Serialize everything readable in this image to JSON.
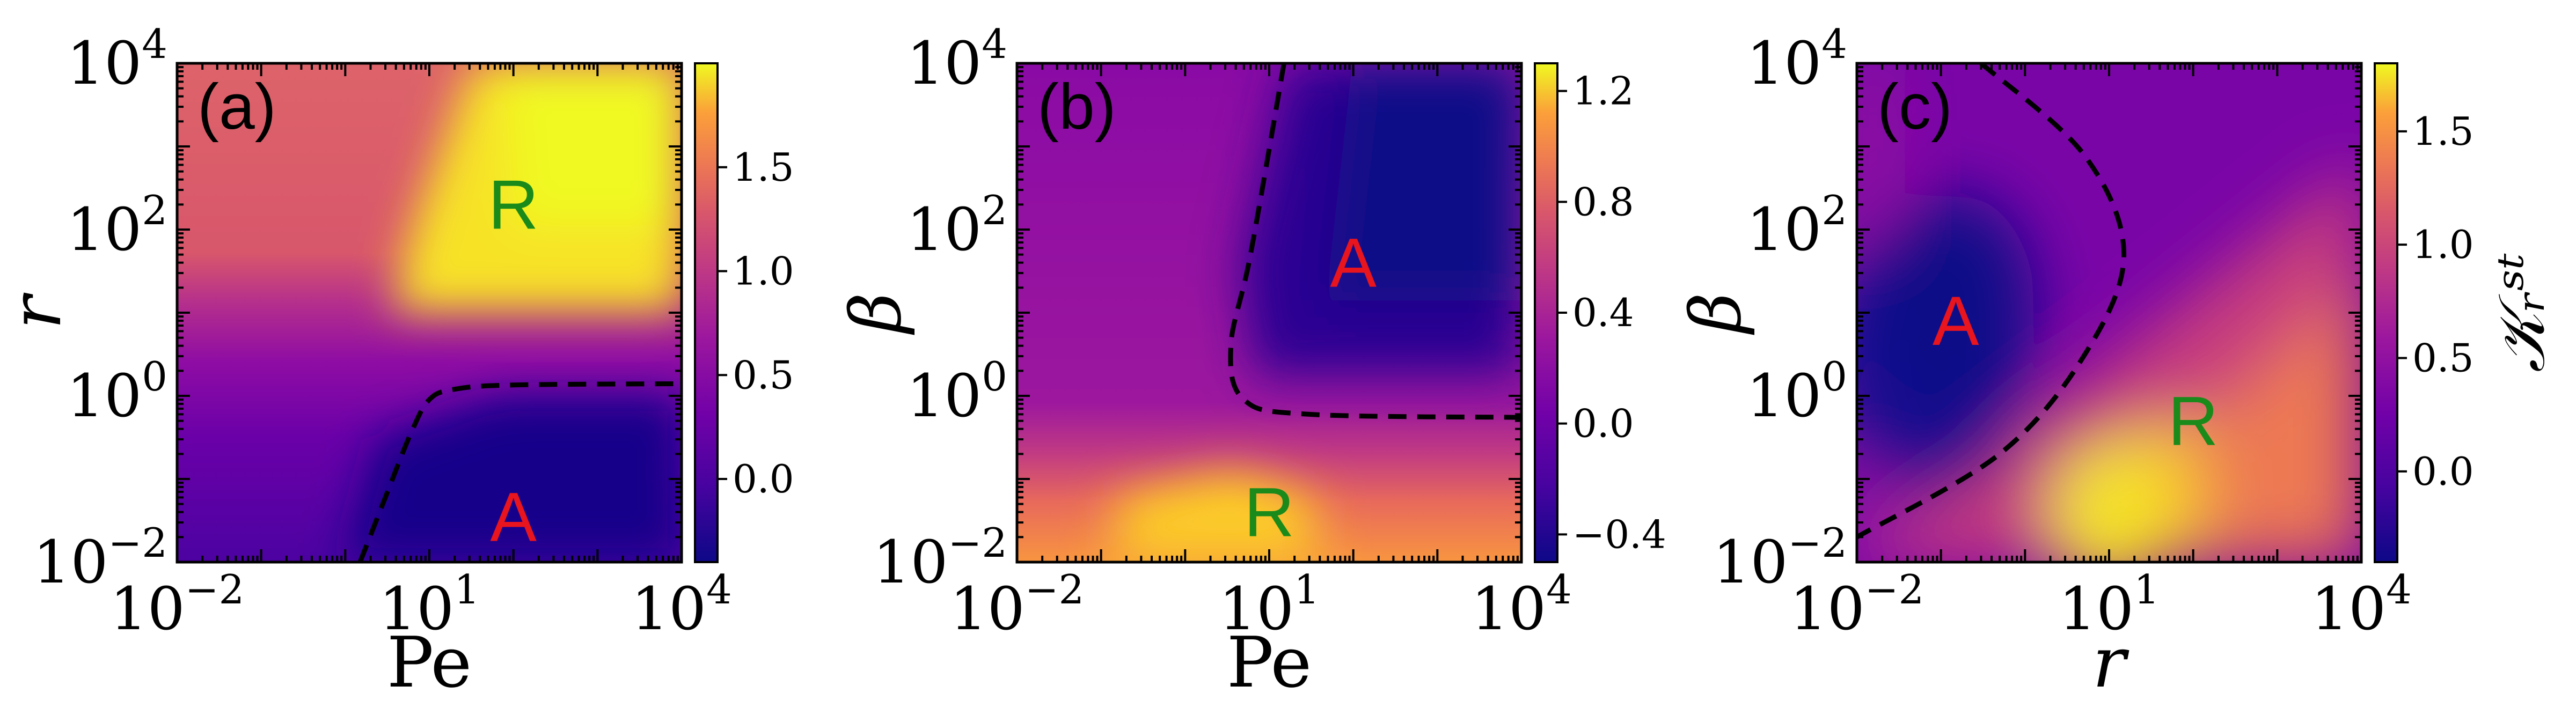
{
  "chart_data": [
    {
      "type": "heatmap",
      "panel_label": "(a)",
      "xlabel": "Pe",
      "ylabel": "r",
      "x_scale": "log",
      "y_scale": "log",
      "xlim": [
        0.01,
        10000
      ],
      "ylim": [
        0.01,
        10000
      ],
      "x_ticks": [
        {
          "base": "10",
          "exp": "−2"
        },
        {
          "base": "10",
          "exp": "1"
        },
        {
          "base": "10",
          "exp": "4"
        }
      ],
      "y_ticks": [
        {
          "base": "10",
          "exp": "−2"
        },
        {
          "base": "10",
          "exp": "0"
        },
        {
          "base": "10",
          "exp": "2"
        },
        {
          "base": "10",
          "exp": "4"
        }
      ],
      "colormap": "plasma",
      "colorbar": {
        "range": [
          -0.4,
          2.0
        ],
        "ticks": [
          "0.0",
          "0.5",
          "1.0",
          "1.5"
        ],
        "tick_values": [
          0.0,
          0.5,
          1.0,
          1.5
        ],
        "label": ""
      },
      "regions": [
        {
          "label": "R",
          "color": "#1a8a1a",
          "at": [
            100,
            200
          ]
        },
        {
          "label": "A",
          "color": "#e8141e",
          "at": [
            100,
            0.035
          ]
        }
      ],
      "dashed_boundary": [
        [
          1.5,
          0.01
        ],
        [
          3,
          0.06
        ],
        [
          6,
          0.35
        ],
        [
          10,
          0.9
        ],
        [
          20,
          1.2
        ],
        [
          100,
          1.35
        ],
        [
          10000,
          1.4
        ]
      ],
      "levels": {
        "left": 1.05,
        "top_right": 1.95,
        "bottom_right": -0.35
      }
    },
    {
      "type": "heatmap",
      "panel_label": "(b)",
      "xlabel": "Pe",
      "ylabel": "β",
      "x_scale": "log",
      "y_scale": "log",
      "xlim": [
        0.01,
        10000
      ],
      "ylim": [
        0.01,
        10000
      ],
      "x_ticks": [
        {
          "base": "10",
          "exp": "−2"
        },
        {
          "base": "10",
          "exp": "1"
        },
        {
          "base": "10",
          "exp": "4"
        }
      ],
      "y_ticks": [
        {
          "base": "10",
          "exp": "−2"
        },
        {
          "base": "10",
          "exp": "0"
        },
        {
          "base": "10",
          "exp": "2"
        },
        {
          "base": "10",
          "exp": "4"
        }
      ],
      "colormap": "plasma",
      "colorbar": {
        "range": [
          -0.5,
          1.3
        ],
        "ticks": [
          "−0.4",
          "0.0",
          "0.4",
          "0.8",
          "1.2"
        ],
        "tick_values": [
          -0.4,
          0.0,
          0.4,
          0.8,
          1.2
        ],
        "label": ""
      },
      "regions": [
        {
          "label": "A",
          "color": "#e8141e",
          "at": [
            100,
            40
          ]
        },
        {
          "label": "R",
          "color": "#1a8a1a",
          "at": [
            10,
            0.04
          ]
        }
      ],
      "dashed_boundary": [
        [
          15,
          10000
        ],
        [
          6,
          50
        ],
        [
          3.5,
          4
        ],
        [
          5,
          0.9
        ],
        [
          30,
          0.6
        ],
        [
          10000,
          0.55
        ]
      ],
      "levels": {
        "background": 0.15,
        "top_right": -0.45,
        "bottom": 1.1
      }
    },
    {
      "type": "heatmap",
      "panel_label": "(c)",
      "xlabel": "r",
      "ylabel": "β",
      "x_scale": "log",
      "y_scale": "log",
      "xlim": [
        0.01,
        10000
      ],
      "ylim": [
        0.01,
        10000
      ],
      "x_ticks": [
        {
          "base": "10",
          "exp": "−2"
        },
        {
          "base": "10",
          "exp": "1"
        },
        {
          "base": "10",
          "exp": "4"
        }
      ],
      "y_ticks": [
        {
          "base": "10",
          "exp": "−2"
        },
        {
          "base": "10",
          "exp": "0"
        },
        {
          "base": "10",
          "exp": "2"
        },
        {
          "base": "10",
          "exp": "4"
        }
      ],
      "colormap": "plasma",
      "colorbar": {
        "range": [
          -0.4,
          1.8
        ],
        "ticks": [
          "0.0",
          "0.5",
          "1.0",
          "1.5"
        ],
        "tick_values": [
          0.0,
          0.5,
          1.0,
          1.5
        ],
        "label": "𝒦ᵣˢᵗ"
      },
      "regions": [
        {
          "label": "A",
          "color": "#e8141e",
          "at": [
            0.15,
            8
          ]
        },
        {
          "label": "R",
          "color": "#1a8a1a",
          "at": [
            100,
            0.5
          ]
        }
      ],
      "dashed_boundary": [
        [
          0.3,
          10000
        ],
        [
          5,
          800
        ],
        [
          15,
          50
        ],
        [
          5,
          3
        ],
        [
          0.5,
          0.2
        ],
        [
          0.01,
          0.02
        ]
      ],
      "levels": {
        "background": 0.1,
        "A_min": -0.35,
        "R_max": 1.75
      }
    }
  ]
}
